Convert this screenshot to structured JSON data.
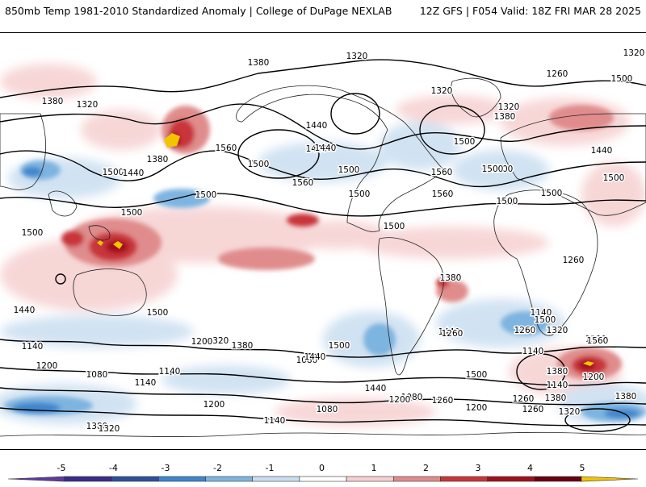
{
  "header": {
    "title": "850mb Temp 1981-2010 Standardized Anomaly | College of DuPage NEXLAB",
    "run_info": "12Z GFS | F054 Valid: 18Z FRI MAR 28 2025"
  },
  "contours": {
    "labels": [
      {
        "text": "1380"
      },
      {
        "text": "1320"
      },
      {
        "text": "1320"
      },
      {
        "text": "1380"
      },
      {
        "text": "1320"
      },
      {
        "text": "1440"
      },
      {
        "text": "1500"
      },
      {
        "text": "1380"
      },
      {
        "text": "1440"
      },
      {
        "text": "1560"
      },
      {
        "text": "1500"
      },
      {
        "text": "1500"
      },
      {
        "text": "1560"
      },
      {
        "text": "1500"
      },
      {
        "text": "1380"
      },
      {
        "text": "1440"
      },
      {
        "text": "1500"
      },
      {
        "text": "1500"
      },
      {
        "text": "1500"
      },
      {
        "text": "1440"
      },
      {
        "text": "1560"
      },
      {
        "text": "1560"
      },
      {
        "text": "1500"
      },
      {
        "text": "1320"
      },
      {
        "text": "1260"
      },
      {
        "text": "1320"
      },
      {
        "text": "1380"
      },
      {
        "text": "1500"
      },
      {
        "text": "1440"
      },
      {
        "text": "1500"
      },
      {
        "text": "1500"
      },
      {
        "text": "1500"
      },
      {
        "text": "1500"
      },
      {
        "text": "1500"
      },
      {
        "text": "1500"
      },
      {
        "text": "1380"
      },
      {
        "text": "1260"
      },
      {
        "text": "1440"
      },
      {
        "text": "1500"
      },
      {
        "text": "1320"
      },
      {
        "text": "1200"
      },
      {
        "text": "1500"
      },
      {
        "text": "1380"
      },
      {
        "text": "1440"
      },
      {
        "text": "1140"
      },
      {
        "text": "1260"
      },
      {
        "text": "1080"
      },
      {
        "text": "1200"
      },
      {
        "text": "1140"
      },
      {
        "text": "1080"
      },
      {
        "text": "1140"
      },
      {
        "text": "1320"
      },
      {
        "text": "1260"
      },
      {
        "text": "1380"
      },
      {
        "text": "1140"
      },
      {
        "text": "1440"
      },
      {
        "text": "1320"
      },
      {
        "text": "1200"
      },
      {
        "text": "1140"
      },
      {
        "text": "1260"
      },
      {
        "text": "1080"
      },
      {
        "text": "1140"
      },
      {
        "text": "1200"
      },
      {
        "text": "1380"
      },
      {
        "text": "1440"
      },
      {
        "text": "1500"
      },
      {
        "text": "1320"
      },
      {
        "text": "1200"
      },
      {
        "text": "1560"
      },
      {
        "text": "1380"
      },
      {
        "text": "1260"
      },
      {
        "text": "1320"
      },
      {
        "text": "1200"
      },
      {
        "text": "1080"
      },
      {
        "text": "1260"
      },
      {
        "text": "1140"
      },
      {
        "text": "1380"
      },
      {
        "text": "1500"
      }
    ]
  },
  "legend": {
    "ticks": [
      "-5",
      "-4",
      "-3",
      "-2",
      "-1",
      "0",
      "1",
      "2",
      "3",
      "4",
      "5"
    ],
    "colors": [
      "#3b2a8a",
      "#2f4f9a",
      "#3f86cc",
      "#7eb4e0",
      "#c9def0",
      "#ffffff",
      "#f6d0d0",
      "#e08c8c",
      "#c8353a",
      "#a0101e",
      "#6a0010"
    ],
    "end_low": "#5c3c9c",
    "end_high": "#f2c500"
  },
  "colors": {
    "contour": "#000000",
    "coastline": "#222222",
    "warm": "#c8353a",
    "cold": "#3f86cc"
  }
}
